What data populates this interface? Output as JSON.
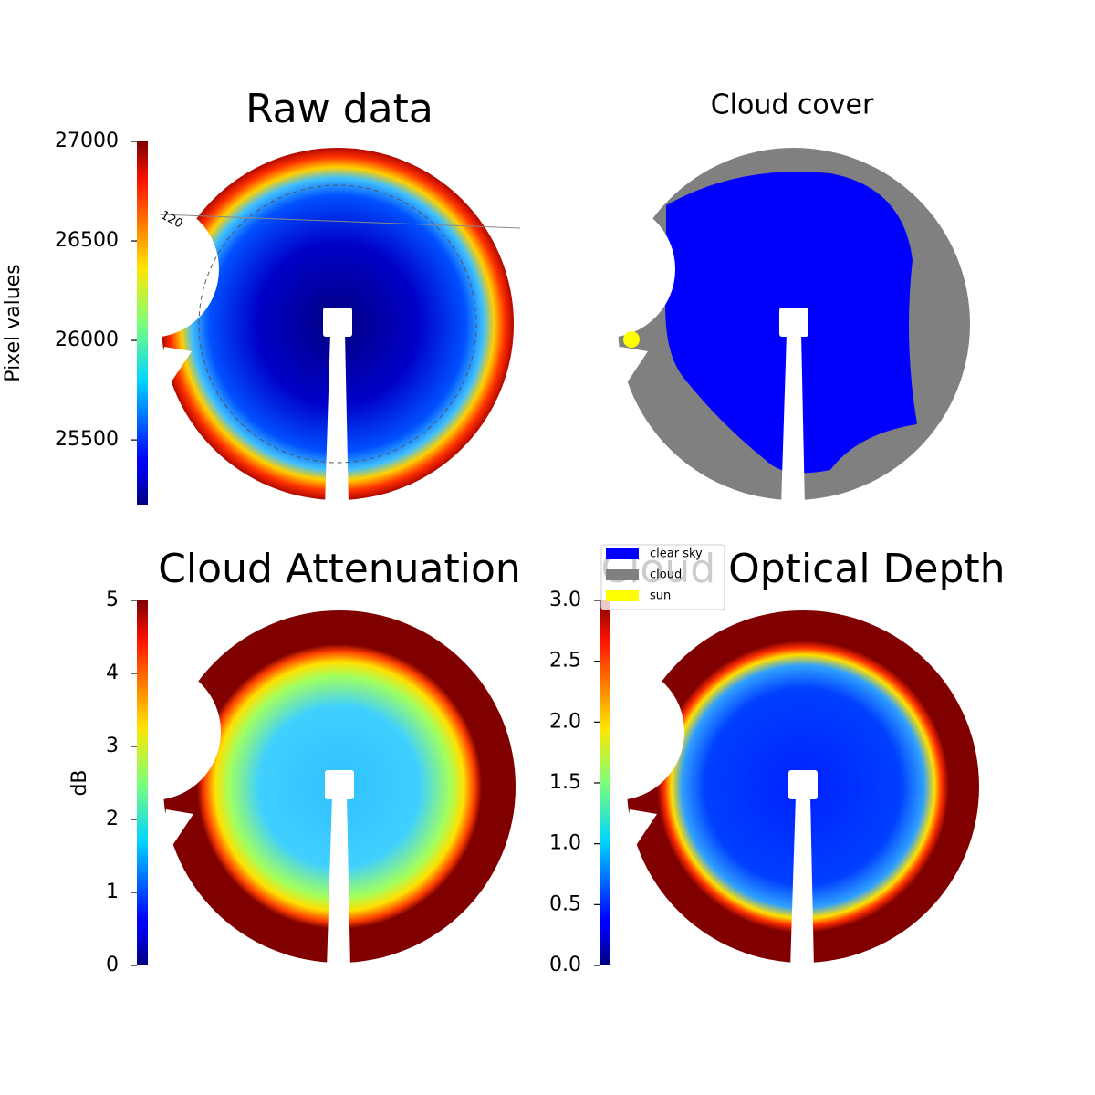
{
  "chart_data": [
    {
      "type": "image",
      "title": "Raw data",
      "colormap": "jet",
      "colorbar_label": "Pixel values",
      "clim": [
        25175,
        27000
      ],
      "cticks": [
        25500,
        26000,
        26500,
        27000
      ],
      "annotations": [
        "120"
      ]
    },
    {
      "type": "image",
      "title": "Cloud cover",
      "legend": "lower left",
      "series": [
        {
          "name": "clear sky",
          "color": "#0000ff"
        },
        {
          "name": "cloud",
          "color": "#808080"
        },
        {
          "name": "sun",
          "color": "#ffff00"
        }
      ]
    },
    {
      "type": "image",
      "title": "Cloud Attenuation",
      "colormap": "jet",
      "colorbar_label": "dB",
      "clim": [
        0,
        5
      ],
      "cticks": [
        0,
        1,
        2,
        3,
        4,
        5
      ]
    },
    {
      "type": "image",
      "title": "Cloud Optical Depth",
      "colormap": "jet",
      "clim": [
        0,
        3
      ],
      "cticks": [
        {
          "value": 0,
          "label": "0.0"
        },
        {
          "value": 0.5,
          "label": "0.5"
        },
        {
          "value": 1,
          "label": "1.0"
        },
        {
          "value": 1.5,
          "label": "1.5"
        },
        {
          "value": 2,
          "label": "2.0"
        },
        {
          "value": 2.5,
          "label": "2.5"
        },
        {
          "value": 3,
          "label": "3.0"
        }
      ]
    }
  ]
}
